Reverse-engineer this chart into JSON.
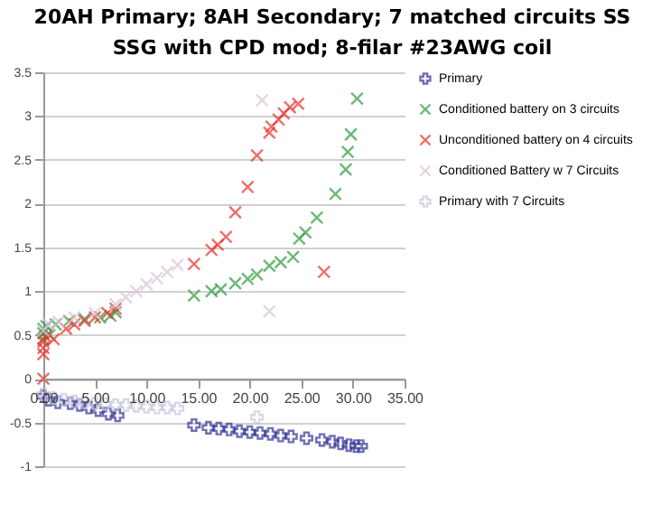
{
  "chart_data": {
    "type": "scatter",
    "title": "20AH Primary; 8AH Secondary; 7 matched circuits SS SSG with CPD mod; 8-filar #23AWG coil",
    "xlim": [
      0,
      35
    ],
    "xticks": [
      {
        "value": 0,
        "label": "0.00"
      },
      {
        "value": 5,
        "label": "5.00"
      },
      {
        "value": 10,
        "label": "10.00"
      },
      {
        "value": 15,
        "label": "15.00"
      },
      {
        "value": 20,
        "label": "20.00"
      },
      {
        "value": 25,
        "label": "25.00"
      },
      {
        "value": 30,
        "label": "30.00"
      },
      {
        "value": 35,
        "label": "35.00"
      }
    ],
    "ylim": [
      -1,
      3.5
    ],
    "yticks": [
      -1,
      -0.5,
      0,
      0.5,
      1,
      1.5,
      2,
      2.5,
      3,
      3.5
    ],
    "grid": "y",
    "legend": "right",
    "marker": "cross",
    "series": [
      {
        "name": "Primary",
        "color": "#333399",
        "marker": "plus",
        "x": [
          0,
          0.5,
          1.4,
          2.6,
          3.5,
          4.4,
          5.3,
          6.3,
          7.2,
          14.6,
          16,
          17,
          18,
          19,
          20,
          21,
          22,
          23,
          24,
          25.5,
          27,
          28,
          28.8,
          29.6,
          30.3,
          30.8
        ],
        "values": [
          -0.2,
          -0.24,
          -0.27,
          -0.28,
          -0.3,
          -0.33,
          -0.36,
          -0.4,
          -0.42,
          -0.53,
          -0.56,
          -0.57,
          -0.58,
          -0.6,
          -0.61,
          -0.62,
          -0.63,
          -0.65,
          -0.66,
          -0.68,
          -0.7,
          -0.72,
          -0.74,
          -0.76,
          -0.77,
          -0.77
        ]
      },
      {
        "name": "Conditioned battery on 3 circuits",
        "color": "#2e9a3e",
        "x": [
          0,
          0,
          0,
          0.3,
          0.6,
          1.2,
          2.5,
          4,
          5.5,
          6.5,
          7,
          14.6,
          16.3,
          17.2,
          18.6,
          19.8,
          20.7,
          21.9,
          23,
          24.2,
          24.8,
          25.4,
          26.5,
          28.3,
          29.3,
          29.5,
          29.8,
          30.4
        ],
        "values": [
          0.45,
          0.52,
          0.57,
          0.6,
          0.5,
          0.62,
          0.66,
          0.68,
          0.7,
          0.72,
          0.76,
          0.95,
          1,
          1.02,
          1.09,
          1.14,
          1.19,
          1.29,
          1.33,
          1.39,
          1.6,
          1.67,
          1.84,
          2.11,
          2.39,
          2.59,
          2.79,
          3.2
        ]
      },
      {
        "name": "Unconditioned battery on 4 circuits",
        "color": "#e8322a",
        "x": [
          0,
          0,
          0,
          0.2,
          0,
          1,
          2.2,
          3,
          4,
          5,
          6.2,
          7,
          14.6,
          16.3,
          16.9,
          17.7,
          18.6,
          19.8,
          20.7,
          21.9,
          22.1,
          22.8,
          23.3,
          23.9,
          24.7,
          27.2
        ],
        "values": [
          0.28,
          0.35,
          0.42,
          0.48,
          0,
          0.45,
          0.57,
          0.62,
          0.66,
          0.7,
          0.75,
          0.8,
          1.31,
          1.47,
          1.53,
          1.62,
          1.9,
          2.19,
          2.55,
          2.81,
          2.88,
          2.96,
          3.03,
          3.1,
          3.14,
          1.22
        ]
      },
      {
        "name": "Conditioned Battery w 7 Circuits",
        "color": "#d8c4d8",
        "x": [
          0,
          0.5,
          1.5,
          3,
          5,
          7,
          8,
          9,
          10,
          11,
          12,
          13,
          21.2,
          21.9
        ],
        "values": [
          0.55,
          0.62,
          0.65,
          0.7,
          0.75,
          0.85,
          0.93,
          1,
          1.08,
          1.15,
          1.22,
          1.3,
          3.18,
          0.77
        ]
      },
      {
        "name": "Primary with 7 Circuits",
        "color": "#c8c8dc",
        "marker": "plus",
        "x": [
          0,
          1,
          2,
          3,
          4,
          5,
          6,
          7,
          8,
          9,
          10,
          11,
          12,
          13,
          20.7
        ],
        "values": [
          -0.18,
          -0.22,
          -0.24,
          -0.26,
          -0.27,
          -0.28,
          -0.29,
          -0.3,
          -0.3,
          -0.31,
          -0.32,
          -0.33,
          -0.33,
          -0.34,
          -0.44
        ]
      }
    ]
  }
}
